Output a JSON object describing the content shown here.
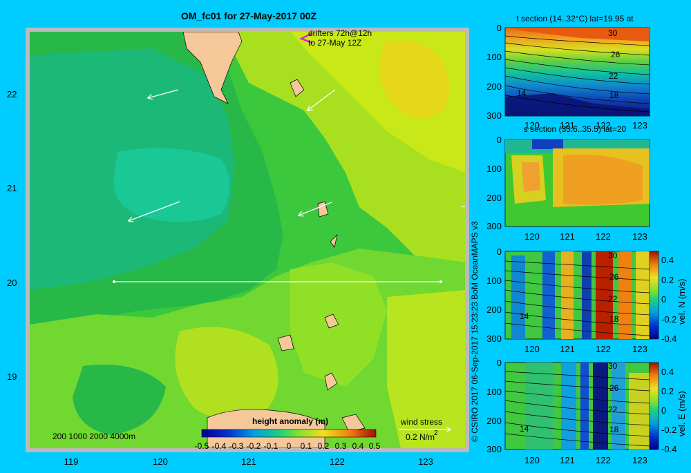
{
  "main_map": {
    "title": "OM_fc01 for 27-May-2017 00Z",
    "drifters_line1": "drifters 72h@12h",
    "drifters_line2": "to 27-May 12Z",
    "y_ticks": [
      "22",
      "21",
      "20",
      "19"
    ],
    "x_ticks": [
      "119",
      "120",
      "121",
      "122",
      "123"
    ],
    "depth_legend": "200  1000  2000  4000m",
    "colorbar_title": "height anomaly (m)",
    "colorbar_ticks": [
      "-0.5",
      "-0.4",
      "-0.3",
      "-0.2",
      "-0.1",
      "0",
      "0.1",
      "0.2",
      "0.3",
      "0.4",
      "0.5"
    ],
    "wind_stress_label": "wind stress",
    "wind_stress_value": "0.2 N/m",
    "wind_stress_exp": "2"
  },
  "credit": "© CSIRO 2017   06-Sep-2017 15:23:23 BoM OceanMAPS v3",
  "panels": [
    {
      "title": "t section (14..32°C) lat=19.95 at",
      "y_ticks": [
        "0",
        "100",
        "200",
        "300"
      ],
      "x_ticks": [
        "120",
        "121",
        "122",
        "123"
      ],
      "contour_labels": [
        "30",
        "26",
        "22",
        "18",
        "14"
      ]
    },
    {
      "title": "s section (33.6..35.5) lat=20",
      "y_ticks": [
        "0",
        "100",
        "200",
        "300"
      ],
      "x_ticks": [
        "120",
        "121",
        "122",
        "123"
      ]
    },
    {
      "y_ticks": [
        "0",
        "100",
        "200",
        "300"
      ],
      "x_ticks": [
        "120",
        "121",
        "122",
        "123"
      ],
      "contour_labels": [
        "30",
        "26",
        "22",
        "18",
        "14"
      ],
      "cbar_ticks": [
        "0.4",
        "0.2",
        "0",
        "-0.2",
        "-0.4"
      ],
      "cbar_label": "vel. N (m/s)"
    },
    {
      "y_ticks": [
        "0",
        "100",
        "200",
        "300"
      ],
      "x_ticks": [
        "120",
        "121",
        "122",
        "123"
      ],
      "contour_labels": [
        "30",
        "26",
        "22",
        "18",
        "14"
      ],
      "cbar_ticks": [
        "0.4",
        "0.2",
        "0",
        "-0.2",
        "-0.4"
      ],
      "cbar_label": "vel. E (m/s)"
    }
  ],
  "colors": {
    "background": "#00ccff",
    "land": "#f5c89a",
    "frame": "#bbbbbb"
  }
}
